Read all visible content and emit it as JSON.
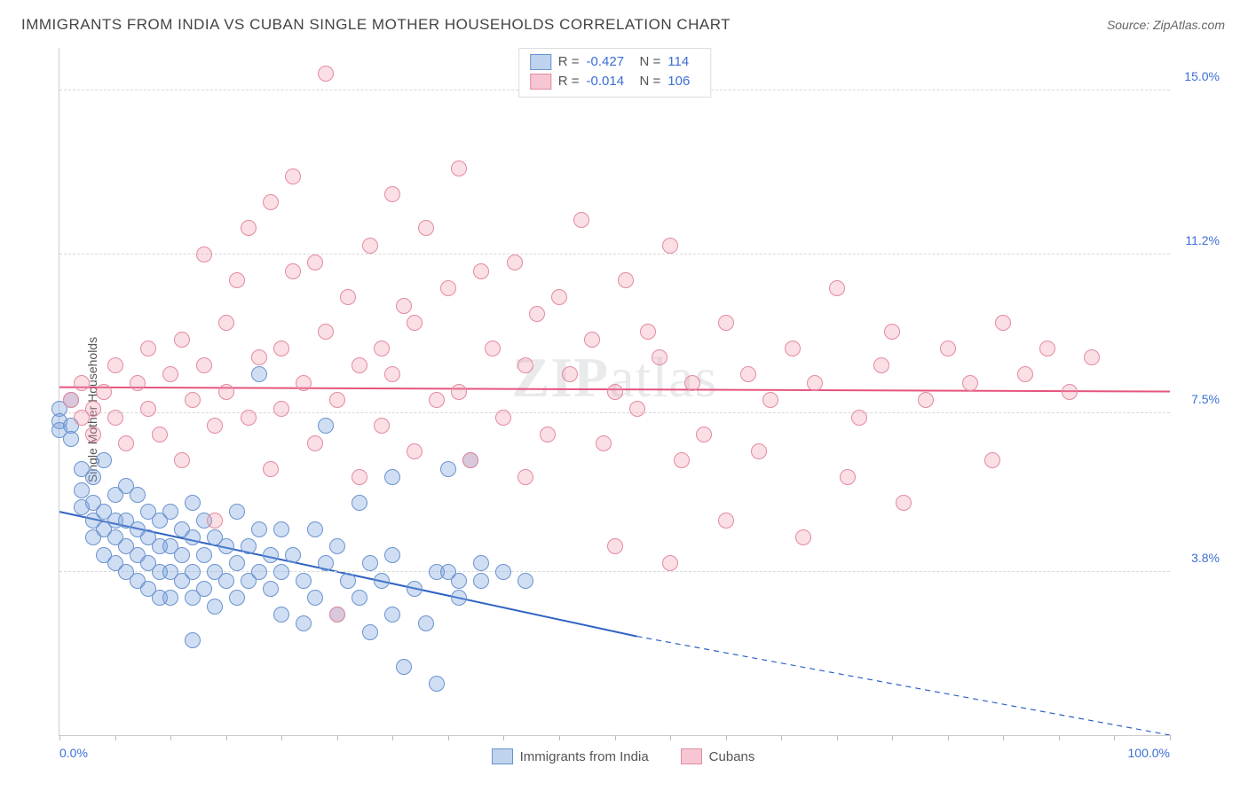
{
  "title": "IMMIGRANTS FROM INDIA VS CUBAN SINGLE MOTHER HOUSEHOLDS CORRELATION CHART",
  "source_label": "Source:",
  "source_name": "ZipAtlas.com",
  "ylabel": "Single Mother Households",
  "watermark_strong": "ZIP",
  "watermark_rest": "atlas",
  "chart": {
    "type": "scatter",
    "background_color": "#ffffff",
    "grid_color": "#d8d8d8",
    "axis_color": "#cccccc",
    "tick_label_color": "#3b6fd6",
    "marker_radius": 9,
    "marker_border_width": 1.2,
    "xlim": [
      0,
      100
    ],
    "ylim": [
      0,
      16
    ],
    "x_ticks": [
      0,
      5,
      10,
      15,
      20,
      25,
      30,
      35,
      40,
      45,
      50,
      55,
      60,
      65,
      70,
      75,
      80,
      85,
      90,
      95,
      100
    ],
    "x_tick_labels": [
      {
        "x": 0,
        "label": "0.0%",
        "align": "left"
      },
      {
        "x": 100,
        "label": "100.0%",
        "align": "right"
      }
    ],
    "y_gridlines": [
      3.8,
      7.5,
      11.2,
      15.0
    ],
    "y_tick_labels": [
      "3.8%",
      "7.5%",
      "11.2%",
      "15.0%"
    ],
    "series": [
      {
        "name": "Immigrants from India",
        "marker_fill": "rgba(120,160,220,0.35)",
        "marker_stroke": "#6a93cf",
        "swatch_fill": "#bfd3ef",
        "swatch_border": "#6a93cf",
        "line_color": "#2f63c2",
        "line_width": 2,
        "trend": {
          "x1": 0,
          "y1": 5.2,
          "x2_solid": 52,
          "y2_solid": 2.3,
          "x2_dash": 100,
          "y2_dash": -0.4
        },
        "stats": {
          "R": "-0.427",
          "N": "114"
        },
        "points": [
          [
            0,
            7.6
          ],
          [
            0,
            7.3
          ],
          [
            0,
            7.1
          ],
          [
            1,
            7.8
          ],
          [
            1,
            7.2
          ],
          [
            1,
            6.9
          ],
          [
            2,
            6.2
          ],
          [
            2,
            5.7
          ],
          [
            2,
            5.3
          ],
          [
            3,
            6.0
          ],
          [
            3,
            5.4
          ],
          [
            3,
            5.0
          ],
          [
            3,
            4.6
          ],
          [
            4,
            6.4
          ],
          [
            4,
            5.2
          ],
          [
            4,
            4.8
          ],
          [
            4,
            4.2
          ],
          [
            5,
            5.6
          ],
          [
            5,
            5.0
          ],
          [
            5,
            4.6
          ],
          [
            5,
            4.0
          ],
          [
            6,
            5.8
          ],
          [
            6,
            5.0
          ],
          [
            6,
            4.4
          ],
          [
            6,
            3.8
          ],
          [
            7,
            5.6
          ],
          [
            7,
            4.8
          ],
          [
            7,
            4.2
          ],
          [
            7,
            3.6
          ],
          [
            8,
            5.2
          ],
          [
            8,
            4.6
          ],
          [
            8,
            4.0
          ],
          [
            8,
            3.4
          ],
          [
            9,
            5.0
          ],
          [
            9,
            4.4
          ],
          [
            9,
            3.8
          ],
          [
            9,
            3.2
          ],
          [
            10,
            5.2
          ],
          [
            10,
            4.4
          ],
          [
            10,
            3.8
          ],
          [
            10,
            3.2
          ],
          [
            11,
            4.8
          ],
          [
            11,
            4.2
          ],
          [
            11,
            3.6
          ],
          [
            12,
            5.4
          ],
          [
            12,
            4.6
          ],
          [
            12,
            3.8
          ],
          [
            12,
            3.2
          ],
          [
            12,
            2.2
          ],
          [
            13,
            5.0
          ],
          [
            13,
            4.2
          ],
          [
            13,
            3.4
          ],
          [
            14,
            4.6
          ],
          [
            14,
            3.8
          ],
          [
            14,
            3.0
          ],
          [
            15,
            4.4
          ],
          [
            15,
            3.6
          ],
          [
            16,
            5.2
          ],
          [
            16,
            4.0
          ],
          [
            16,
            3.2
          ],
          [
            17,
            4.4
          ],
          [
            17,
            3.6
          ],
          [
            18,
            8.4
          ],
          [
            18,
            4.8
          ],
          [
            18,
            3.8
          ],
          [
            19,
            4.2
          ],
          [
            19,
            3.4
          ],
          [
            20,
            4.8
          ],
          [
            20,
            3.8
          ],
          [
            20,
            2.8
          ],
          [
            21,
            4.2
          ],
          [
            22,
            3.6
          ],
          [
            22,
            2.6
          ],
          [
            23,
            4.8
          ],
          [
            23,
            3.2
          ],
          [
            24,
            7.2
          ],
          [
            24,
            4.0
          ],
          [
            25,
            4.4
          ],
          [
            25,
            2.8
          ],
          [
            26,
            3.6
          ],
          [
            27,
            5.4
          ],
          [
            27,
            3.2
          ],
          [
            28,
            4.0
          ],
          [
            28,
            2.4
          ],
          [
            29,
            3.6
          ],
          [
            30,
            6.0
          ],
          [
            30,
            4.2
          ],
          [
            30,
            2.8
          ],
          [
            31,
            1.6
          ],
          [
            32,
            3.4
          ],
          [
            33,
            2.6
          ],
          [
            34,
            3.8
          ],
          [
            34,
            1.2
          ],
          [
            35,
            6.2
          ],
          [
            35,
            3.8
          ],
          [
            36,
            3.6
          ],
          [
            36,
            3.2
          ],
          [
            37,
            6.4
          ],
          [
            38,
            4.0
          ],
          [
            38,
            3.6
          ],
          [
            40,
            3.8
          ],
          [
            42,
            3.6
          ]
        ]
      },
      {
        "name": "Cubans",
        "marker_fill": "rgba(240,150,170,0.30)",
        "marker_stroke": "#e48aa0",
        "swatch_fill": "#f6c7d3",
        "swatch_border": "#e48aa0",
        "line_color": "#e6537d",
        "line_width": 2,
        "trend": {
          "x1": 0,
          "y1": 8.1,
          "x2_solid": 100,
          "y2_solid": 8.0
        },
        "stats": {
          "R": "-0.014",
          "N": "106"
        },
        "points": [
          [
            1,
            7.8
          ],
          [
            2,
            7.4
          ],
          [
            2,
            8.2
          ],
          [
            3,
            7.6
          ],
          [
            3,
            7.0
          ],
          [
            4,
            8.0
          ],
          [
            5,
            7.4
          ],
          [
            5,
            8.6
          ],
          [
            6,
            6.8
          ],
          [
            7,
            8.2
          ],
          [
            8,
            7.6
          ],
          [
            8,
            9.0
          ],
          [
            9,
            7.0
          ],
          [
            10,
            8.4
          ],
          [
            11,
            6.4
          ],
          [
            11,
            9.2
          ],
          [
            12,
            7.8
          ],
          [
            13,
            11.2
          ],
          [
            13,
            8.6
          ],
          [
            14,
            7.2
          ],
          [
            14,
            5.0
          ],
          [
            15,
            9.6
          ],
          [
            15,
            8.0
          ],
          [
            16,
            10.6
          ],
          [
            17,
            11.8
          ],
          [
            17,
            7.4
          ],
          [
            18,
            8.8
          ],
          [
            19,
            6.2
          ],
          [
            19,
            12.4
          ],
          [
            20,
            9.0
          ],
          [
            20,
            7.6
          ],
          [
            21,
            10.8
          ],
          [
            21,
            13.0
          ],
          [
            22,
            8.2
          ],
          [
            23,
            6.8
          ],
          [
            23,
            11.0
          ],
          [
            24,
            15.4
          ],
          [
            24,
            9.4
          ],
          [
            25,
            7.8
          ],
          [
            25,
            2.8
          ],
          [
            26,
            10.2
          ],
          [
            27,
            8.6
          ],
          [
            27,
            6.0
          ],
          [
            28,
            11.4
          ],
          [
            29,
            9.0
          ],
          [
            29,
            7.2
          ],
          [
            30,
            12.6
          ],
          [
            30,
            8.4
          ],
          [
            31,
            10.0
          ],
          [
            32,
            6.6
          ],
          [
            32,
            9.6
          ],
          [
            33,
            11.8
          ],
          [
            34,
            7.8
          ],
          [
            35,
            10.4
          ],
          [
            36,
            8.0
          ],
          [
            36,
            13.2
          ],
          [
            37,
            6.4
          ],
          [
            38,
            10.8
          ],
          [
            39,
            9.0
          ],
          [
            40,
            7.4
          ],
          [
            41,
            11.0
          ],
          [
            42,
            8.6
          ],
          [
            42,
            6.0
          ],
          [
            43,
            9.8
          ],
          [
            44,
            7.0
          ],
          [
            45,
            10.2
          ],
          [
            46,
            8.4
          ],
          [
            47,
            12.0
          ],
          [
            48,
            9.2
          ],
          [
            49,
            6.8
          ],
          [
            50,
            8.0
          ],
          [
            50,
            4.4
          ],
          [
            51,
            10.6
          ],
          [
            52,
            7.6
          ],
          [
            53,
            9.4
          ],
          [
            54,
            8.8
          ],
          [
            55,
            11.4
          ],
          [
            55,
            4.0
          ],
          [
            56,
            6.4
          ],
          [
            57,
            8.2
          ],
          [
            58,
            7.0
          ],
          [
            60,
            9.6
          ],
          [
            60,
            5.0
          ],
          [
            62,
            8.4
          ],
          [
            63,
            6.6
          ],
          [
            64,
            7.8
          ],
          [
            66,
            9.0
          ],
          [
            67,
            4.6
          ],
          [
            68,
            8.2
          ],
          [
            70,
            10.4
          ],
          [
            71,
            6.0
          ],
          [
            72,
            7.4
          ],
          [
            74,
            8.6
          ],
          [
            75,
            9.4
          ],
          [
            76,
            5.4
          ],
          [
            78,
            7.8
          ],
          [
            80,
            9.0
          ],
          [
            82,
            8.2
          ],
          [
            84,
            6.4
          ],
          [
            85,
            9.6
          ],
          [
            87,
            8.4
          ],
          [
            89,
            9.0
          ],
          [
            91,
            8.0
          ],
          [
            93,
            8.8
          ]
        ]
      }
    ],
    "legend_labels": {
      "R": "R =",
      "N": "N ="
    }
  }
}
